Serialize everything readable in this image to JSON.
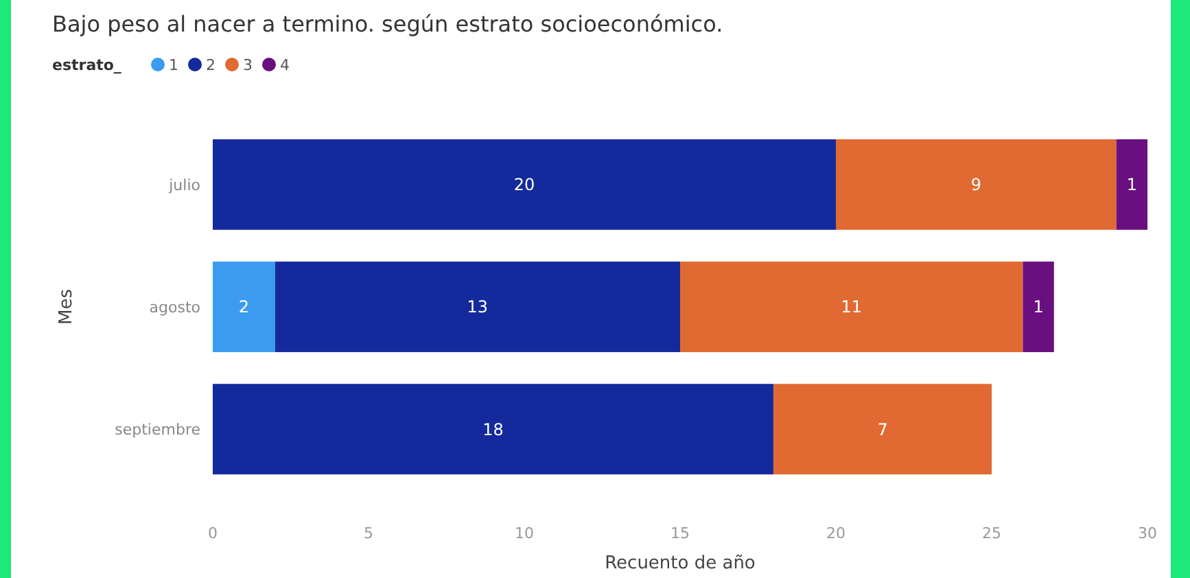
{
  "chart_data": {
    "type": "bar",
    "orientation": "horizontal",
    "stacked": true,
    "title": "Bajo peso al nacer a termino. según estrato socioeconómico.",
    "xlabel": "Recuento de año",
    "ylabel": "Mes",
    "legend_title": "estrato_",
    "legend": "top left",
    "data_labels": true,
    "grid": false,
    "categories": [
      "julio",
      "agosto",
      "septiembre"
    ],
    "series": [
      {
        "name": "1",
        "color": "#3a9bf0",
        "values": [
          null,
          2,
          null
        ]
      },
      {
        "name": "2",
        "color": "#142a9c",
        "values": [
          20,
          13,
          18
        ]
      },
      {
        "name": "3",
        "color": "#e06a32",
        "values": [
          9,
          11,
          7
        ]
      },
      {
        "name": "4",
        "color": "#6a0f80",
        "values": [
          1,
          1,
          null
        ]
      }
    ],
    "xlim": [
      0,
      30
    ],
    "xticks": [
      0,
      5,
      10,
      15,
      20,
      25,
      30
    ]
  }
}
